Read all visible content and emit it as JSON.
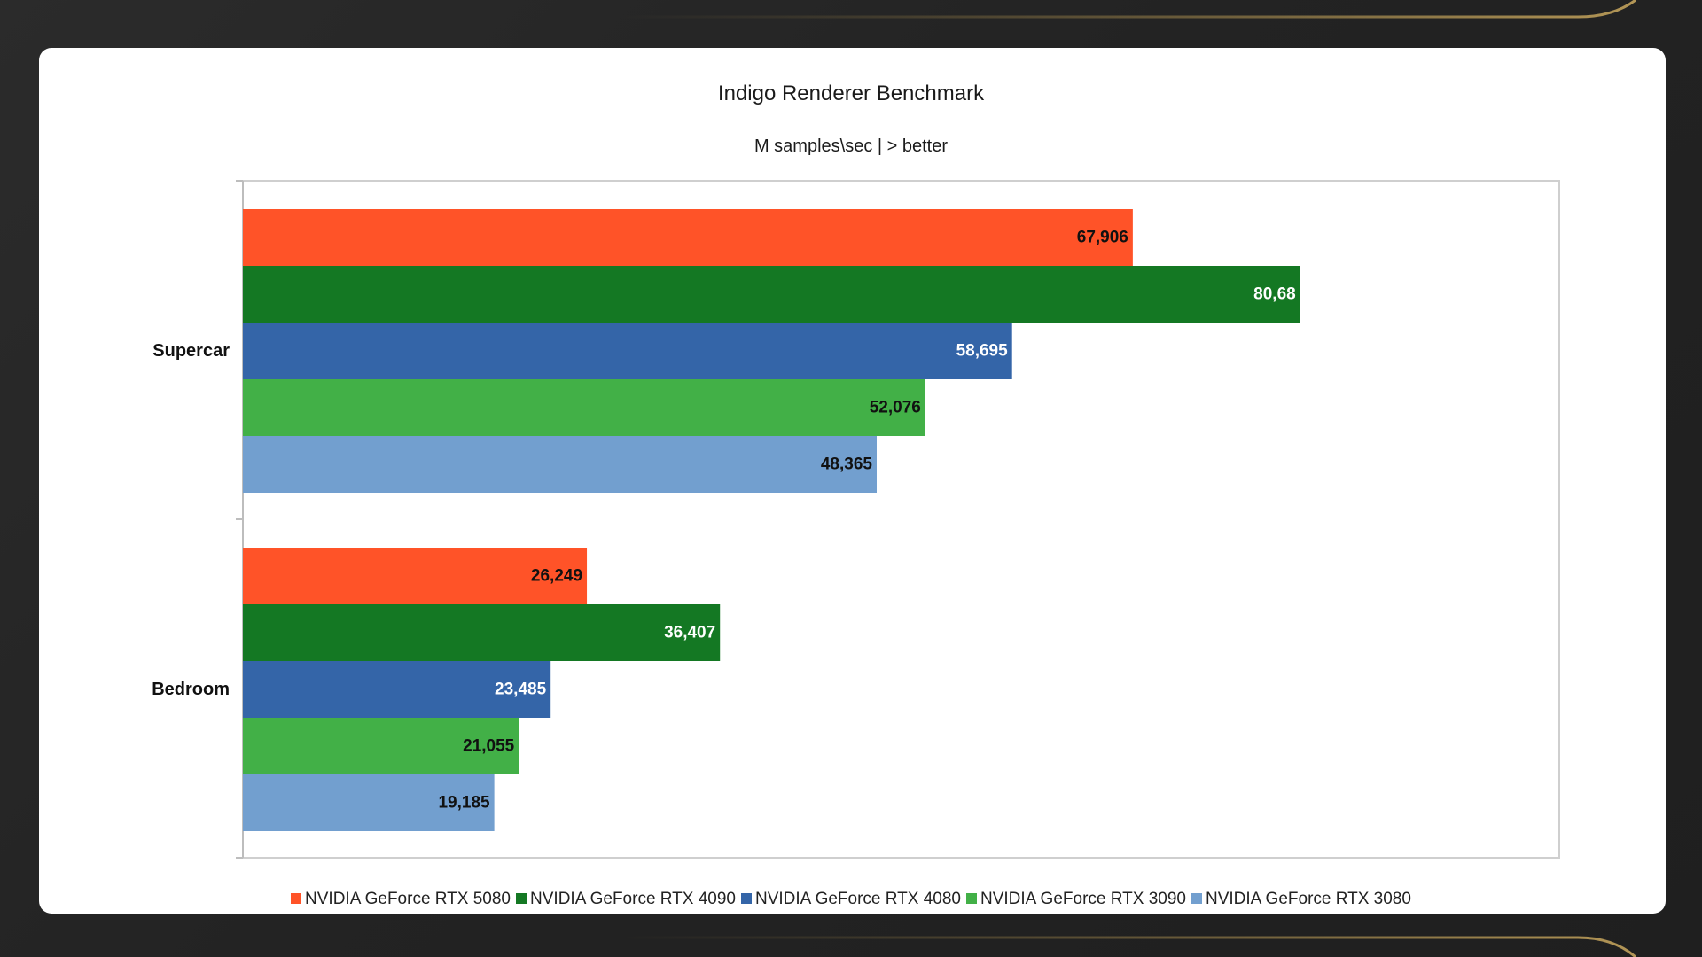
{
  "chart_data": {
    "type": "bar",
    "orientation": "horizontal",
    "title": "Indigo Renderer Benchmark",
    "subtitle": "M samples\\sec | > better",
    "categories": [
      "Supercar",
      "Bedroom"
    ],
    "series": [
      {
        "name": "NVIDIA GeForce RTX 5080",
        "color": "#ff5328",
        "values": [
          67.906,
          26.249
        ],
        "labels": [
          "67,906",
          "26,249"
        ],
        "label_color": "#111111"
      },
      {
        "name": "NVIDIA GeForce RTX 4090",
        "color": "#147823",
        "values": [
          80.68,
          36.407
        ],
        "labels": [
          "80,68",
          "36,407"
        ],
        "label_color": "#ffffff"
      },
      {
        "name": "NVIDIA GeForce RTX 4080",
        "color": "#3465a8",
        "values": [
          58.695,
          23.485
        ],
        "labels": [
          "58,695",
          "23,485"
        ],
        "label_color": "#ffffff"
      },
      {
        "name": "NVIDIA GeForce RTX 3090",
        "color": "#42b047",
        "values": [
          52.076,
          21.055
        ],
        "labels": [
          "52,076",
          "21,055"
        ],
        "label_color": "#111111"
      },
      {
        "name": "NVIDIA GeForce RTX 3080",
        "color": "#729fcf",
        "values": [
          48.365,
          19.185
        ],
        "labels": [
          "48,365",
          "19,185"
        ],
        "label_color": "#111111"
      }
    ],
    "xlim": [
      0,
      90
    ],
    "grid": false,
    "legend_position": "bottom"
  }
}
